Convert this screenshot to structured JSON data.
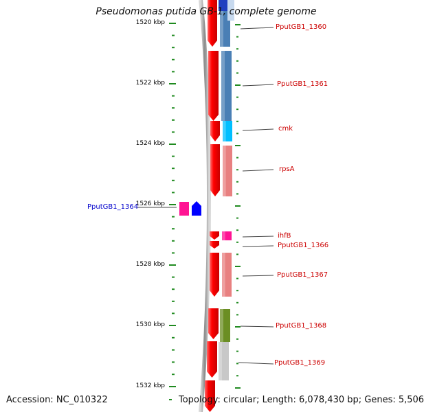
{
  "title": "Pseudomonas putida GB-1, complete genome",
  "accession": "Accession: NC_010322",
  "summary": "Topology: circular; Length: 6,078,430 bp; Genes: 5,506",
  "ticks": [
    "1520 kbp",
    "1522 kbp",
    "1524 kbp",
    "1526 kbp",
    "1528 kbp",
    "1530 kbp",
    "1532 kbp"
  ],
  "colors": {
    "backbone": "#8a8a8a",
    "cds_arrow": "#ff0000",
    "tick": "#1f8a1f",
    "label_forward": "#cc0000",
    "label_reverse": "#0000cc"
  },
  "genes": [
    {
      "label": "PputGB1_1360",
      "strand": "forward",
      "color": "#4a7fb5"
    },
    {
      "label": "PputGB1_1361",
      "strand": "forward",
      "color": "#4a7fb5"
    },
    {
      "label": "cmk",
      "strand": "forward",
      "color": "#00bfff"
    },
    {
      "label": "rpsA",
      "strand": "forward",
      "color": "#e88080"
    },
    {
      "label": "PputGB1_1364",
      "strand": "reverse",
      "color": "#ff1493"
    },
    {
      "label": "ihfB",
      "strand": "forward",
      "color": "#ff1493"
    },
    {
      "label": "PputGB1_1366",
      "strand": "forward",
      "color": "#ff0000"
    },
    {
      "label": "PputGB1_1367",
      "strand": "forward",
      "color": "#e88080"
    },
    {
      "label": "PputGB1_1368",
      "strand": "forward",
      "color": "#6b8e23"
    },
    {
      "label": "PputGB1_1369",
      "strand": "forward",
      "color": "#c8c8c8"
    }
  ]
}
